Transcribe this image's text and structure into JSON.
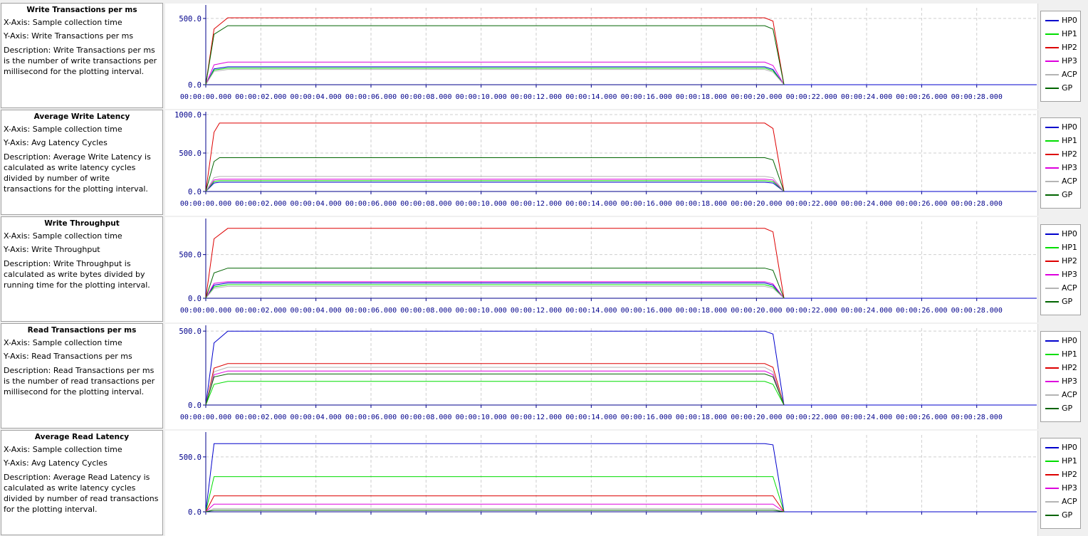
{
  "legend_series": [
    "HP0",
    "HP1",
    "HP2",
    "HP3",
    "ACP",
    "GP"
  ],
  "colors": {
    "HP0": "#0000cc",
    "HP1": "#00dd00",
    "HP2": "#dd0000",
    "HP3": "#dd00dd",
    "ACP": "#b4b4b4",
    "GP": "#006400"
  },
  "x_tick_labels": [
    "00:00:00.000",
    "00:00:02.000",
    "00:00:04.000",
    "00:00:06.000",
    "00:00:08.000",
    "00:00:10.000",
    "00:00:12.000",
    "00:00:14.000",
    "00:00:16.000",
    "00:00:18.000",
    "00:00:20.000",
    "00:00:22.000",
    "00:00:24.000",
    "00:00:26.000",
    "00:00:28.000"
  ],
  "panels": [
    {
      "title": "Write Transactions per ms",
      "xaxis": "X-Axis: Sample collection time",
      "yaxis": "Y-Axis: Write Transactions per ms",
      "description": "Description: Write Transactions per ms is the number of write transactions per millisecond for the plotting interval.",
      "y_tick_labels": [
        "500.0",
        "0.0"
      ]
    },
    {
      "title": "Average Write Latency",
      "xaxis": "X-Axis: Sample collection time",
      "yaxis": "Y-Axis: Avg Latency Cycles",
      "description": "Description: Average Write Latency is calculated as write latency cycles divided by number of write transactions for the plotting interval.",
      "y_tick_labels": [
        "1000.0",
        "500.0",
        "0.0"
      ]
    },
    {
      "title": "Write Throughput",
      "xaxis": "X-Axis: Sample collection time",
      "yaxis": "Y-Axis: Write Throughput",
      "description": "Description: Write Throughput is calculated as write bytes divided by running time for the plotting interval.",
      "y_tick_labels": [
        "500.0",
        "0.0"
      ]
    },
    {
      "title": "Read Transactions per ms",
      "xaxis": "X-Axis: Sample collection time",
      "yaxis": "Y-Axis: Read Transactions per ms",
      "description": "Description: Read Transactions per ms is the number of read transactions per millisecond for the plotting interval.",
      "y_tick_labels": [
        "500.0",
        "0.0"
      ]
    },
    {
      "title": "Average Read Latency",
      "xaxis": "X-Axis: Sample collection time",
      "yaxis": "Y-Axis: Avg Latency Cycles",
      "description": "Description: Average Read Latency is calculated as write latency cycles divided by number of read transactions for the plotting interval.",
      "y_tick_labels": [
        "500.0",
        "0.0"
      ]
    }
  ],
  "chart_data": [
    {
      "type": "line",
      "title": "Write Transactions per ms",
      "xlabel": "Sample collection time",
      "ylabel": "Write Transactions per ms",
      "xlim": [
        -0.1,
        29.3
      ],
      "ylim": [
        0,
        580
      ],
      "x": [
        0,
        0.3,
        0.8,
        20.3,
        20.6,
        21.0
      ],
      "series": [
        {
          "name": "HP0",
          "values": [
            0,
            120,
            135,
            135,
            115,
            0
          ]
        },
        {
          "name": "HP1",
          "values": [
            0,
            110,
            125,
            125,
            105,
            0
          ]
        },
        {
          "name": "HP2",
          "values": [
            0,
            420,
            505,
            505,
            480,
            0
          ]
        },
        {
          "name": "HP3",
          "values": [
            0,
            150,
            170,
            170,
            145,
            0
          ]
        },
        {
          "name": "ACP",
          "values": [
            0,
            100,
            115,
            115,
            95,
            0
          ]
        },
        {
          "name": "GP",
          "values": [
            0,
            380,
            445,
            445,
            420,
            0
          ]
        }
      ]
    },
    {
      "type": "line",
      "title": "Average Write Latency",
      "xlabel": "Sample collection time",
      "ylabel": "Avg Latency Cycles",
      "xlim": [
        -0.1,
        29.3
      ],
      "ylim": [
        0,
        1000
      ],
      "x": [
        0,
        0.3,
        0.5,
        20.3,
        20.6,
        21.0
      ],
      "series": [
        {
          "name": "HP0",
          "values": [
            0,
            110,
            120,
            120,
            110,
            0
          ]
        },
        {
          "name": "HP1",
          "values": [
            0,
            130,
            140,
            140,
            130,
            0
          ]
        },
        {
          "name": "HP2",
          "values": [
            0,
            770,
            890,
            890,
            820,
            0
          ]
        },
        {
          "name": "HP3",
          "values": [
            0,
            150,
            160,
            160,
            150,
            0
          ]
        },
        {
          "name": "ACP",
          "values": [
            0,
            180,
            195,
            195,
            180,
            0
          ]
        },
        {
          "name": "GP",
          "values": [
            0,
            390,
            440,
            440,
            410,
            0
          ]
        }
      ]
    },
    {
      "type": "line",
      "title": "Write Throughput",
      "xlabel": "Sample collection time",
      "ylabel": "Write Throughput",
      "xlim": [
        -0.1,
        29.3
      ],
      "ylim": [
        0,
        880
      ],
      "x": [
        0,
        0.3,
        0.8,
        20.3,
        20.6,
        21.0
      ],
      "series": [
        {
          "name": "HP0",
          "values": [
            0,
            150,
            175,
            175,
            150,
            0
          ]
        },
        {
          "name": "HP1",
          "values": [
            0,
            130,
            155,
            155,
            130,
            0
          ]
        },
        {
          "name": "HP2",
          "values": [
            0,
            680,
            800,
            800,
            760,
            0
          ]
        },
        {
          "name": "HP3",
          "values": [
            0,
            170,
            190,
            190,
            165,
            0
          ]
        },
        {
          "name": "ACP",
          "values": [
            0,
            115,
            135,
            135,
            115,
            0
          ]
        },
        {
          "name": "GP",
          "values": [
            0,
            290,
            345,
            345,
            320,
            0
          ]
        }
      ]
    },
    {
      "type": "line",
      "title": "Read Transactions per ms",
      "xlabel": "Sample collection time",
      "ylabel": "Read Transactions per ms",
      "xlim": [
        -0.1,
        29.3
      ],
      "ylim": [
        0,
        520
      ],
      "x": [
        0,
        0.3,
        0.8,
        20.3,
        20.6,
        21.0
      ],
      "series": [
        {
          "name": "HP0",
          "values": [
            0,
            420,
            500,
            500,
            480,
            0
          ]
        },
        {
          "name": "HP1",
          "values": [
            0,
            140,
            160,
            160,
            140,
            0
          ]
        },
        {
          "name": "HP2",
          "values": [
            0,
            250,
            280,
            280,
            255,
            0
          ]
        },
        {
          "name": "HP3",
          "values": [
            0,
            205,
            230,
            230,
            205,
            0
          ]
        },
        {
          "name": "ACP",
          "values": [
            0,
            225,
            255,
            255,
            225,
            0
          ]
        },
        {
          "name": "GP",
          "values": [
            0,
            190,
            210,
            210,
            190,
            0
          ]
        }
      ]
    },
    {
      "type": "line",
      "title": "Average Read Latency",
      "xlabel": "Sample collection time",
      "ylabel": "Avg Latency Cycles",
      "xlim": [
        -0.1,
        29.3
      ],
      "ylim": [
        0,
        700
      ],
      "x": [
        0,
        0.3,
        20.3,
        20.6,
        21.0
      ],
      "series": [
        {
          "name": "HP0",
          "values": [
            0,
            620,
            620,
            610,
            0
          ]
        },
        {
          "name": "HP1",
          "values": [
            0,
            320,
            320,
            320,
            0
          ]
        },
        {
          "name": "HP2",
          "values": [
            0,
            145,
            145,
            145,
            0
          ]
        },
        {
          "name": "HP3",
          "values": [
            0,
            70,
            70,
            70,
            0
          ]
        },
        {
          "name": "ACP",
          "values": [
            0,
            30,
            30,
            30,
            0
          ]
        },
        {
          "name": "GP",
          "values": [
            0,
            15,
            15,
            15,
            0
          ]
        }
      ]
    }
  ]
}
